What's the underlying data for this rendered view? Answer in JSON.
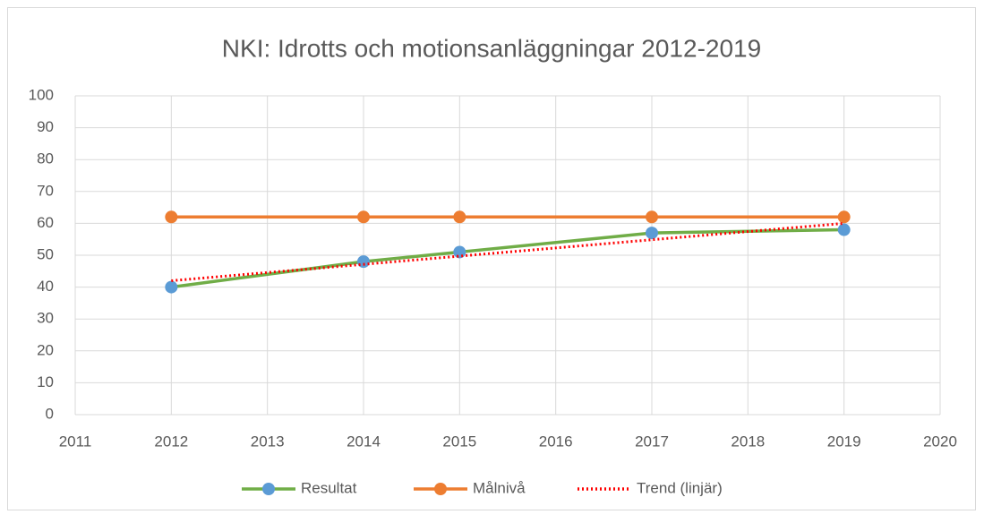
{
  "chart_data": {
    "type": "line",
    "title": "NKI: Idrotts och motionsanläggningar 2012-2019",
    "series": [
      {
        "name": "Resultat",
        "color": "#70ad47",
        "marker_color": "#5b9bd5",
        "x": [
          2012,
          2014,
          2015,
          2017,
          2019
        ],
        "values": [
          40,
          48,
          51,
          57,
          58
        ]
      },
      {
        "name": "Målnivå",
        "color": "#ed7d31",
        "marker_color": "#ed7d31",
        "x": [
          2012,
          2014,
          2015,
          2017,
          2019
        ],
        "values": [
          62,
          62,
          62,
          62,
          62
        ]
      },
      {
        "name": "Trend (linjär)",
        "color": "#ff0000",
        "dotted": true,
        "x": [
          2012,
          2019
        ],
        "values": [
          42,
          60
        ]
      }
    ],
    "xlim": [
      2011,
      2020
    ],
    "xticks": [
      2011,
      2012,
      2013,
      2014,
      2015,
      2016,
      2017,
      2018,
      2019,
      2020
    ],
    "ylim": [
      0,
      100
    ],
    "yticks": [
      0,
      10,
      20,
      30,
      40,
      50,
      60,
      70,
      80,
      90,
      100
    ],
    "grid": true,
    "legend": "bottom"
  }
}
